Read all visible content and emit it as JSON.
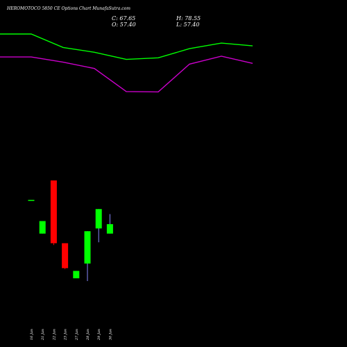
{
  "header": {
    "title": "HEROMOTOCO 5850 CE Options Chart MunafaSutra.com",
    "close": "C: 67.65",
    "open": "O: 57.40",
    "high": "H: 78.55",
    "low": "L: 57.40"
  },
  "colors": {
    "background": "#000000",
    "up": "#00ff00",
    "down": "#ff0000",
    "upper_band": "#00ff00",
    "lower_band": "#cc00cc",
    "text": "#ffffff"
  },
  "chart_data": {
    "type": "candlestick",
    "categories": [
      "16 Jan",
      "21 Jan",
      "22 Jan",
      "23 Jan",
      "27 Jan",
      "28 Jan",
      "29 Jan",
      "30 Jan"
    ],
    "candles": [
      {
        "date": "16 Jan",
        "open": 94.0,
        "high": 94.0,
        "low": 94.0,
        "close": 94.0
      },
      {
        "date": "21 Jan",
        "open": 57.4,
        "high": 71.0,
        "low": 57.4,
        "close": 71.0
      },
      {
        "date": "22 Jan",
        "open": 115.0,
        "high": 115.0,
        "low": 45.0,
        "close": 47.0
      },
      {
        "date": "23 Jan",
        "open": 47.0,
        "high": 47.0,
        "low": 19.0,
        "close": 20.0
      },
      {
        "date": "27 Jan",
        "open": 9.0,
        "high": 17.0,
        "low": 9.0,
        "close": 17.0
      },
      {
        "date": "28 Jan",
        "open": 25.0,
        "high": 60.0,
        "low": 6.0,
        "close": 60.0
      },
      {
        "date": "29 Jan",
        "open": 63.0,
        "high": 84.0,
        "low": 48.0,
        "close": 84.0
      },
      {
        "date": "30 Jan",
        "open": 57.4,
        "high": 78.55,
        "low": 57.4,
        "close": 67.65
      }
    ],
    "bands": [
      {
        "name": "upper",
        "values": [
          343,
          343,
          309,
          297,
          279,
          283,
          306,
          320,
          313
        ]
      },
      {
        "name": "lower",
        "values": [
          285,
          285,
          272,
          256,
          198,
          197,
          267,
          287,
          269
        ]
      }
    ],
    "band_x": [
      "",
      "16 Jan",
      "21 Jan",
      "22 Jan",
      "23 Jan",
      "27 Jan",
      "28 Jan",
      "29 Jan",
      "30 Jan"
    ],
    "ylim": [
      0,
      350
    ],
    "grid": false
  }
}
